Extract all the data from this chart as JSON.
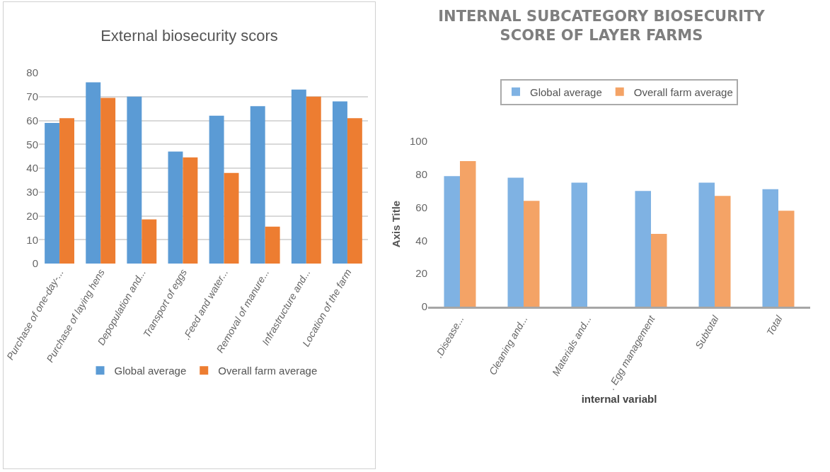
{
  "chart_data": [
    {
      "type": "bar",
      "title": "External biosecurity scors",
      "categories": [
        "Purchase of one-day-...",
        "Purchase of laying hens",
        "Depopulation and...",
        "Transport of eggs",
        ".Feed and water...",
        "Removal of manure...",
        "Infrastructure and...",
        "Location of the farm"
      ],
      "series": [
        {
          "name": "Global average",
          "color": "#5b9bd5",
          "values": [
            59,
            76,
            70,
            47,
            62,
            66,
            73,
            68
          ]
        },
        {
          "name": "Overall farm average",
          "color": "#ed7d31",
          "values": [
            61,
            69.5,
            18.5,
            44.5,
            38,
            15.5,
            70,
            61
          ]
        }
      ],
      "ylim": [
        0,
        80
      ],
      "yticks": [
        0,
        10,
        20,
        30,
        40,
        50,
        60,
        70,
        80
      ],
      "grid": "y",
      "legend": "bottom"
    },
    {
      "type": "bar",
      "title": "INTERNAL SUBCATEGORY BIOSECURITY SCORE OF LAYER FARMS",
      "xlabel": "internal variabl",
      "ylabel": "Axis Title",
      "categories": [
        ".Disease...",
        "Cleaning and...",
        "Materials and...",
        ". Egg management",
        "Subtotal",
        "Total"
      ],
      "series": [
        {
          "name": "Global average",
          "color": "#7fb2e3",
          "values": [
            79,
            78,
            75,
            70,
            75,
            71
          ]
        },
        {
          "name": "Overall farm average",
          "color": "#f4a366",
          "values": [
            88,
            64,
            null,
            44,
            67,
            58
          ]
        }
      ],
      "ylim": [
        0,
        100
      ],
      "yticks": [
        0,
        20,
        40,
        60,
        80,
        100
      ],
      "grid": false,
      "legend": "top"
    }
  ]
}
